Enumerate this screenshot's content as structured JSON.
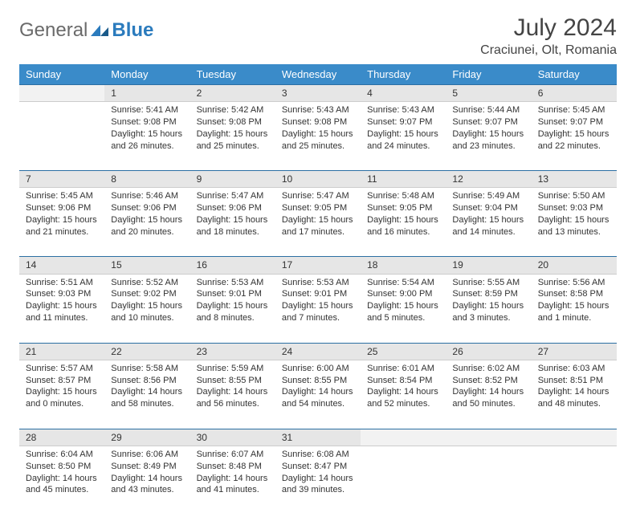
{
  "header": {
    "logo_general": "General",
    "logo_blue": "Blue",
    "month_title": "July 2024",
    "location": "Craciunei, Olt, Romania"
  },
  "colors": {
    "header_bg": "#3a8bc9",
    "header_text": "#ffffff",
    "daynum_bg": "#e6e6e6",
    "daynum_border_top": "#2b6fa3",
    "text": "#333333",
    "logo_gray": "#6a6a6a",
    "logo_blue": "#2b7bbd"
  },
  "weekdays": [
    "Sunday",
    "Monday",
    "Tuesday",
    "Wednesday",
    "Thursday",
    "Friday",
    "Saturday"
  ],
  "weeks": [
    [
      {
        "num": "",
        "lines": []
      },
      {
        "num": "1",
        "lines": [
          "Sunrise: 5:41 AM",
          "Sunset: 9:08 PM",
          "Daylight: 15 hours",
          "and 26 minutes."
        ]
      },
      {
        "num": "2",
        "lines": [
          "Sunrise: 5:42 AM",
          "Sunset: 9:08 PM",
          "Daylight: 15 hours",
          "and 25 minutes."
        ]
      },
      {
        "num": "3",
        "lines": [
          "Sunrise: 5:43 AM",
          "Sunset: 9:08 PM",
          "Daylight: 15 hours",
          "and 25 minutes."
        ]
      },
      {
        "num": "4",
        "lines": [
          "Sunrise: 5:43 AM",
          "Sunset: 9:07 PM",
          "Daylight: 15 hours",
          "and 24 minutes."
        ]
      },
      {
        "num": "5",
        "lines": [
          "Sunrise: 5:44 AM",
          "Sunset: 9:07 PM",
          "Daylight: 15 hours",
          "and 23 minutes."
        ]
      },
      {
        "num": "6",
        "lines": [
          "Sunrise: 5:45 AM",
          "Sunset: 9:07 PM",
          "Daylight: 15 hours",
          "and 22 minutes."
        ]
      }
    ],
    [
      {
        "num": "7",
        "lines": [
          "Sunrise: 5:45 AM",
          "Sunset: 9:06 PM",
          "Daylight: 15 hours",
          "and 21 minutes."
        ]
      },
      {
        "num": "8",
        "lines": [
          "Sunrise: 5:46 AM",
          "Sunset: 9:06 PM",
          "Daylight: 15 hours",
          "and 20 minutes."
        ]
      },
      {
        "num": "9",
        "lines": [
          "Sunrise: 5:47 AM",
          "Sunset: 9:06 PM",
          "Daylight: 15 hours",
          "and 18 minutes."
        ]
      },
      {
        "num": "10",
        "lines": [
          "Sunrise: 5:47 AM",
          "Sunset: 9:05 PM",
          "Daylight: 15 hours",
          "and 17 minutes."
        ]
      },
      {
        "num": "11",
        "lines": [
          "Sunrise: 5:48 AM",
          "Sunset: 9:05 PM",
          "Daylight: 15 hours",
          "and 16 minutes."
        ]
      },
      {
        "num": "12",
        "lines": [
          "Sunrise: 5:49 AM",
          "Sunset: 9:04 PM",
          "Daylight: 15 hours",
          "and 14 minutes."
        ]
      },
      {
        "num": "13",
        "lines": [
          "Sunrise: 5:50 AM",
          "Sunset: 9:03 PM",
          "Daylight: 15 hours",
          "and 13 minutes."
        ]
      }
    ],
    [
      {
        "num": "14",
        "lines": [
          "Sunrise: 5:51 AM",
          "Sunset: 9:03 PM",
          "Daylight: 15 hours",
          "and 11 minutes."
        ]
      },
      {
        "num": "15",
        "lines": [
          "Sunrise: 5:52 AM",
          "Sunset: 9:02 PM",
          "Daylight: 15 hours",
          "and 10 minutes."
        ]
      },
      {
        "num": "16",
        "lines": [
          "Sunrise: 5:53 AM",
          "Sunset: 9:01 PM",
          "Daylight: 15 hours",
          "and 8 minutes."
        ]
      },
      {
        "num": "17",
        "lines": [
          "Sunrise: 5:53 AM",
          "Sunset: 9:01 PM",
          "Daylight: 15 hours",
          "and 7 minutes."
        ]
      },
      {
        "num": "18",
        "lines": [
          "Sunrise: 5:54 AM",
          "Sunset: 9:00 PM",
          "Daylight: 15 hours",
          "and 5 minutes."
        ]
      },
      {
        "num": "19",
        "lines": [
          "Sunrise: 5:55 AM",
          "Sunset: 8:59 PM",
          "Daylight: 15 hours",
          "and 3 minutes."
        ]
      },
      {
        "num": "20",
        "lines": [
          "Sunrise: 5:56 AM",
          "Sunset: 8:58 PM",
          "Daylight: 15 hours",
          "and 1 minute."
        ]
      }
    ],
    [
      {
        "num": "21",
        "lines": [
          "Sunrise: 5:57 AM",
          "Sunset: 8:57 PM",
          "Daylight: 15 hours",
          "and 0 minutes."
        ]
      },
      {
        "num": "22",
        "lines": [
          "Sunrise: 5:58 AM",
          "Sunset: 8:56 PM",
          "Daylight: 14 hours",
          "and 58 minutes."
        ]
      },
      {
        "num": "23",
        "lines": [
          "Sunrise: 5:59 AM",
          "Sunset: 8:55 PM",
          "Daylight: 14 hours",
          "and 56 minutes."
        ]
      },
      {
        "num": "24",
        "lines": [
          "Sunrise: 6:00 AM",
          "Sunset: 8:55 PM",
          "Daylight: 14 hours",
          "and 54 minutes."
        ]
      },
      {
        "num": "25",
        "lines": [
          "Sunrise: 6:01 AM",
          "Sunset: 8:54 PM",
          "Daylight: 14 hours",
          "and 52 minutes."
        ]
      },
      {
        "num": "26",
        "lines": [
          "Sunrise: 6:02 AM",
          "Sunset: 8:52 PM",
          "Daylight: 14 hours",
          "and 50 minutes."
        ]
      },
      {
        "num": "27",
        "lines": [
          "Sunrise: 6:03 AM",
          "Sunset: 8:51 PM",
          "Daylight: 14 hours",
          "and 48 minutes."
        ]
      }
    ],
    [
      {
        "num": "28",
        "lines": [
          "Sunrise: 6:04 AM",
          "Sunset: 8:50 PM",
          "Daylight: 14 hours",
          "and 45 minutes."
        ]
      },
      {
        "num": "29",
        "lines": [
          "Sunrise: 6:06 AM",
          "Sunset: 8:49 PM",
          "Daylight: 14 hours",
          "and 43 minutes."
        ]
      },
      {
        "num": "30",
        "lines": [
          "Sunrise: 6:07 AM",
          "Sunset: 8:48 PM",
          "Daylight: 14 hours",
          "and 41 minutes."
        ]
      },
      {
        "num": "31",
        "lines": [
          "Sunrise: 6:08 AM",
          "Sunset: 8:47 PM",
          "Daylight: 14 hours",
          "and 39 minutes."
        ]
      },
      {
        "num": "",
        "lines": []
      },
      {
        "num": "",
        "lines": []
      },
      {
        "num": "",
        "lines": []
      }
    ]
  ]
}
